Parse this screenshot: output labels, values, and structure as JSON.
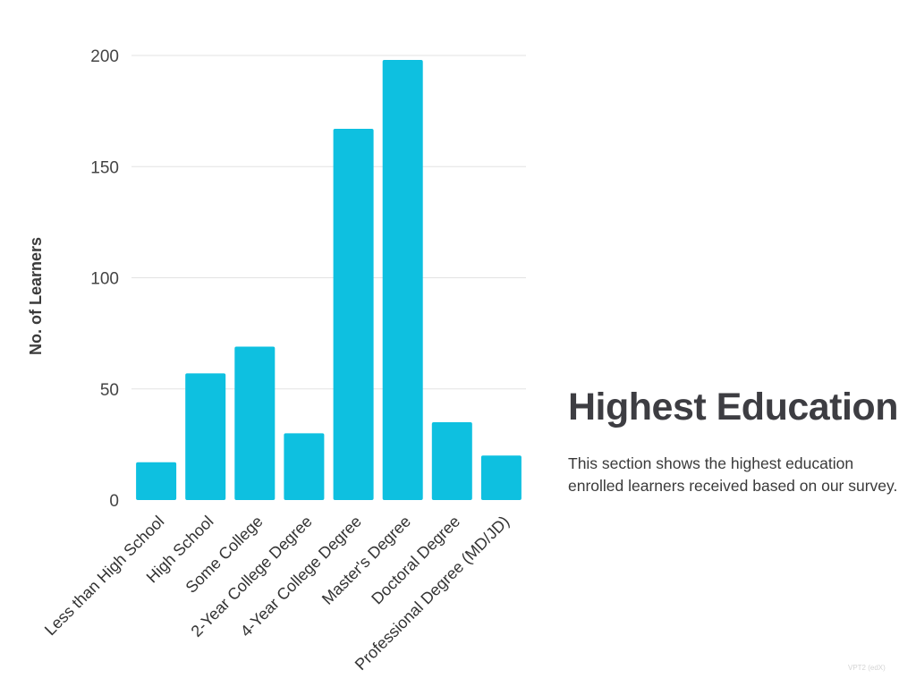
{
  "panel": {
    "title": "Highest Education",
    "description": "This section shows the highest education enrolled learners received based on our survey."
  },
  "footer": {
    "mark": "VPT2 (edX)"
  },
  "colors": {
    "bar": "#0ec0e0",
    "grid": "#e3e3e3"
  },
  "chart_data": {
    "type": "bar",
    "categories": [
      "Less than High School",
      "High School",
      "Some College",
      "2-Year College Degree",
      "4-Year College Degree",
      "Master's Degree",
      "Doctoral Degree",
      "Professional Degree (MD/JD)"
    ],
    "values": [
      17,
      57,
      69,
      30,
      167,
      198,
      35,
      20
    ],
    "ylabel": "No. of Learners",
    "xlabel": "",
    "ylim": [
      0,
      200
    ],
    "yticks": [
      0,
      50,
      100,
      150,
      200
    ],
    "grid": true,
    "legend": "none"
  }
}
